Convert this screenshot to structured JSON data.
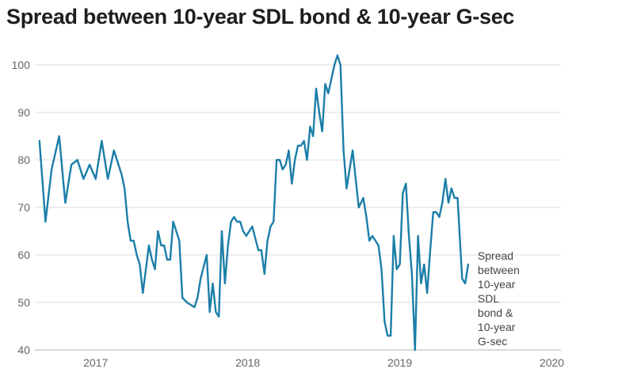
{
  "title": "Spread between 10-year SDL bond & 10-year G-sec",
  "chart_data": {
    "type": "line",
    "title": "Spread between 10-year SDL bond & 10-year G-sec",
    "xlabel": "",
    "ylabel": "",
    "ylim": [
      40,
      103
    ],
    "yticks": [
      40,
      50,
      60,
      70,
      80,
      90,
      100
    ],
    "xlim": [
      2016.6,
      2020.06
    ],
    "xticks": [
      {
        "label": "2017",
        "value": 2017
      },
      {
        "label": "2018",
        "value": 2018
      },
      {
        "label": "2019",
        "value": 2019
      },
      {
        "label": "2020",
        "value": 2020
      }
    ],
    "grid": "horizontal",
    "legend": "end-of-line label",
    "series": [
      {
        "name": "Spread between 10-year SDL bond & 10-year G-sec",
        "name_lines": [
          "Spread",
          "between",
          "10-year",
          "SDL",
          "bond &",
          "10-year",
          "G-sec"
        ],
        "color": "#1b7ea8",
        "points": [
          [
            2016.63,
            84
          ],
          [
            2016.67,
            67
          ],
          [
            2016.71,
            78
          ],
          [
            2016.76,
            85
          ],
          [
            2016.8,
            71
          ],
          [
            2016.84,
            79
          ],
          [
            2016.88,
            80
          ],
          [
            2016.92,
            76
          ],
          [
            2016.96,
            79
          ],
          [
            2017.0,
            76
          ],
          [
            2017.04,
            84
          ],
          [
            2017.08,
            76
          ],
          [
            2017.12,
            82
          ],
          [
            2017.17,
            77
          ],
          [
            2017.19,
            74
          ],
          [
            2017.21,
            67
          ],
          [
            2017.23,
            63
          ],
          [
            2017.25,
            63
          ],
          [
            2017.27,
            60
          ],
          [
            2017.29,
            58
          ],
          [
            2017.31,
            52
          ],
          [
            2017.35,
            62
          ],
          [
            2017.37,
            59
          ],
          [
            2017.39,
            57
          ],
          [
            2017.41,
            65
          ],
          [
            2017.43,
            62
          ],
          [
            2017.45,
            62
          ],
          [
            2017.47,
            59
          ],
          [
            2017.49,
            59
          ],
          [
            2017.51,
            67
          ],
          [
            2017.55,
            63
          ],
          [
            2017.57,
            51
          ],
          [
            2017.6,
            50
          ],
          [
            2017.65,
            49
          ],
          [
            2017.67,
            51
          ],
          [
            2017.69,
            55
          ],
          [
            2017.73,
            60
          ],
          [
            2017.75,
            48
          ],
          [
            2017.77,
            54
          ],
          [
            2017.79,
            48
          ],
          [
            2017.81,
            47
          ],
          [
            2017.83,
            65
          ],
          [
            2017.85,
            54
          ],
          [
            2017.87,
            62
          ],
          [
            2017.89,
            67
          ],
          [
            2017.91,
            68
          ],
          [
            2017.93,
            67
          ],
          [
            2017.95,
            67
          ],
          [
            2017.97,
            65
          ],
          [
            2017.99,
            64
          ],
          [
            2018.03,
            66
          ],
          [
            2018.07,
            61
          ],
          [
            2018.09,
            61
          ],
          [
            2018.11,
            56
          ],
          [
            2018.13,
            63
          ],
          [
            2018.15,
            66
          ],
          [
            2018.17,
            67
          ],
          [
            2018.19,
            80
          ],
          [
            2018.21,
            80
          ],
          [
            2018.23,
            78
          ],
          [
            2018.25,
            79
          ],
          [
            2018.27,
            82
          ],
          [
            2018.29,
            75
          ],
          [
            2018.31,
            80
          ],
          [
            2018.33,
            83
          ],
          [
            2018.35,
            83
          ],
          [
            2018.37,
            84
          ],
          [
            2018.39,
            80
          ],
          [
            2018.41,
            87
          ],
          [
            2018.43,
            85
          ],
          [
            2018.45,
            95
          ],
          [
            2018.47,
            90
          ],
          [
            2018.49,
            86
          ],
          [
            2018.51,
            96
          ],
          [
            2018.53,
            94
          ],
          [
            2018.55,
            97
          ],
          [
            2018.57,
            100
          ],
          [
            2018.59,
            102
          ],
          [
            2018.61,
            100
          ],
          [
            2018.63,
            82
          ],
          [
            2018.65,
            74
          ],
          [
            2018.67,
            78
          ],
          [
            2018.69,
            82
          ],
          [
            2018.71,
            76
          ],
          [
            2018.73,
            70
          ],
          [
            2018.76,
            72
          ],
          [
            2018.78,
            68
          ],
          [
            2018.8,
            63
          ],
          [
            2018.82,
            64
          ],
          [
            2018.84,
            63
          ],
          [
            2018.86,
            62
          ],
          [
            2018.88,
            57
          ],
          [
            2018.9,
            46
          ],
          [
            2018.92,
            43
          ],
          [
            2018.94,
            43
          ],
          [
            2018.96,
            64
          ],
          [
            2018.98,
            57
          ],
          [
            2019.0,
            58
          ],
          [
            2019.02,
            73
          ],
          [
            2019.04,
            75
          ],
          [
            2019.06,
            64
          ],
          [
            2019.08,
            56
          ],
          [
            2019.1,
            40
          ],
          [
            2019.12,
            64
          ],
          [
            2019.14,
            54
          ],
          [
            2019.16,
            58
          ],
          [
            2019.18,
            52
          ],
          [
            2019.2,
            61
          ],
          [
            2019.22,
            69
          ],
          [
            2019.24,
            69
          ],
          [
            2019.26,
            68
          ],
          [
            2019.28,
            71
          ],
          [
            2019.3,
            76
          ],
          [
            2019.32,
            71
          ],
          [
            2019.34,
            74
          ],
          [
            2019.36,
            72
          ],
          [
            2019.38,
            72
          ],
          [
            2019.41,
            55
          ],
          [
            2019.43,
            54
          ],
          [
            2019.45,
            58
          ]
        ]
      }
    ]
  }
}
